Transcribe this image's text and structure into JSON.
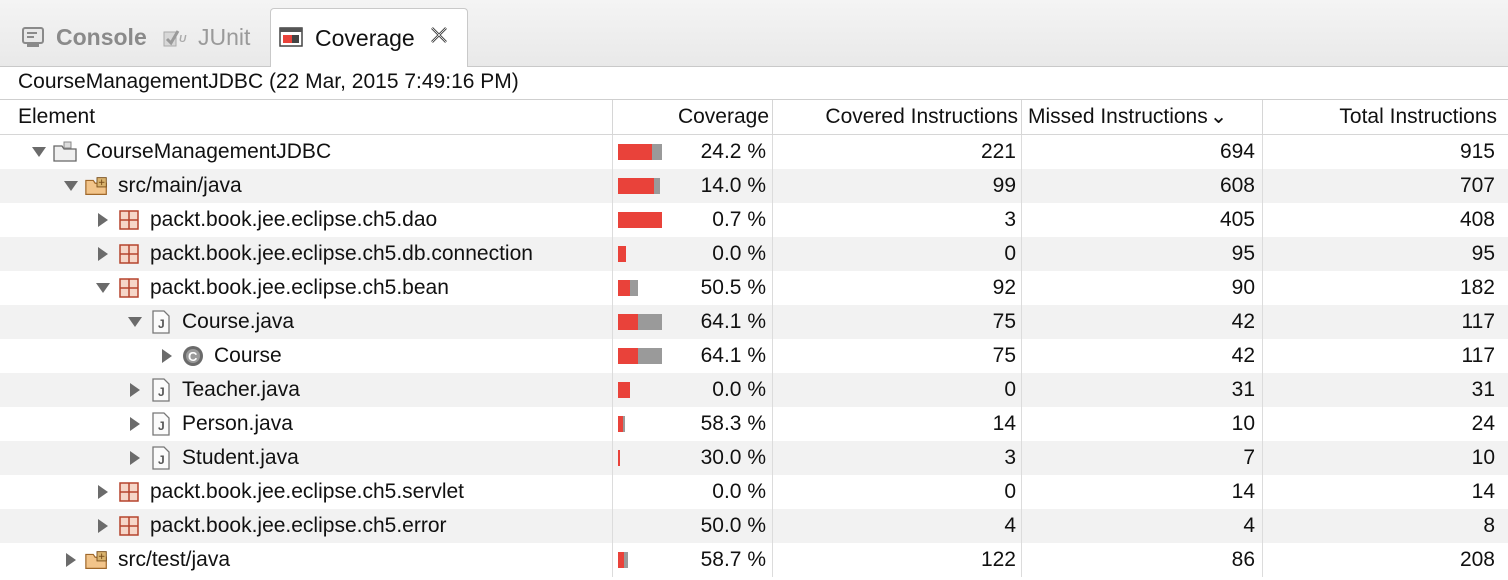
{
  "tabs": [
    {
      "label": "Console",
      "icon": "console-icon"
    },
    {
      "label": "JUnit",
      "icon": "junit-icon"
    },
    {
      "label": "Coverage",
      "icon": "coverage-icon",
      "active": true
    }
  ],
  "session_title": "CourseManagementJDBC (22 Mar, 2015 7:49:16 PM)",
  "columns": {
    "element": "Element",
    "coverage": "Coverage",
    "covered": "Covered Instructions",
    "missed": "Missed Instructions",
    "total": "Total Instructions",
    "sort_indicator": "⌄"
  },
  "rows": [
    {
      "label": "CourseManagementJDBC",
      "coverage": "24.2 %",
      "covered": "221",
      "missed": "694",
      "total": "915",
      "expanded": true,
      "kind": "project"
    },
    {
      "label": "src/main/java",
      "coverage": "14.0 %",
      "covered": "99",
      "missed": "608",
      "total": "707",
      "expanded": true,
      "kind": "source-folder"
    },
    {
      "label": "packt.book.jee.eclipse.ch5.dao",
      "coverage": "0.7 %",
      "covered": "3",
      "missed": "405",
      "total": "408",
      "expanded": false,
      "kind": "package"
    },
    {
      "label": "packt.book.jee.eclipse.ch5.db.connection",
      "coverage": "0.0 %",
      "covered": "0",
      "missed": "95",
      "total": "95",
      "expanded": false,
      "kind": "package"
    },
    {
      "label": "packt.book.jee.eclipse.ch5.bean",
      "coverage": "50.5 %",
      "covered": "92",
      "missed": "90",
      "total": "182",
      "expanded": true,
      "kind": "package"
    },
    {
      "label": "Course.java",
      "coverage": "64.1 %",
      "covered": "75",
      "missed": "42",
      "total": "117",
      "expanded": true,
      "kind": "java-file"
    },
    {
      "label": "Course",
      "coverage": "64.1 %",
      "covered": "75",
      "missed": "42",
      "total": "117",
      "expanded": false,
      "kind": "class"
    },
    {
      "label": "Teacher.java",
      "coverage": "0.0 %",
      "covered": "0",
      "missed": "31",
      "total": "31",
      "expanded": false,
      "kind": "java-file"
    },
    {
      "label": "Person.java",
      "coverage": "58.3 %",
      "covered": "14",
      "missed": "10",
      "total": "24",
      "expanded": false,
      "kind": "java-file"
    },
    {
      "label": "Student.java",
      "coverage": "30.0 %",
      "covered": "3",
      "missed": "7",
      "total": "10",
      "expanded": false,
      "kind": "java-file"
    },
    {
      "label": "packt.book.jee.eclipse.ch5.servlet",
      "coverage": "0.0 %",
      "covered": "0",
      "missed": "14",
      "total": "14",
      "expanded": false,
      "kind": "package"
    },
    {
      "label": "packt.book.jee.eclipse.ch5.error",
      "coverage": "50.0 %",
      "covered": "4",
      "missed": "4",
      "total": "8",
      "expanded": false,
      "kind": "package"
    },
    {
      "label": "src/test/java",
      "coverage": "58.7 %",
      "covered": "122",
      "missed": "86",
      "total": "208",
      "expanded": false,
      "kind": "source-folder"
    }
  ],
  "colors": {
    "missed": "#e9423a",
    "covered": "#9a9a9a",
    "alt_row": "#f2f2f2"
  }
}
